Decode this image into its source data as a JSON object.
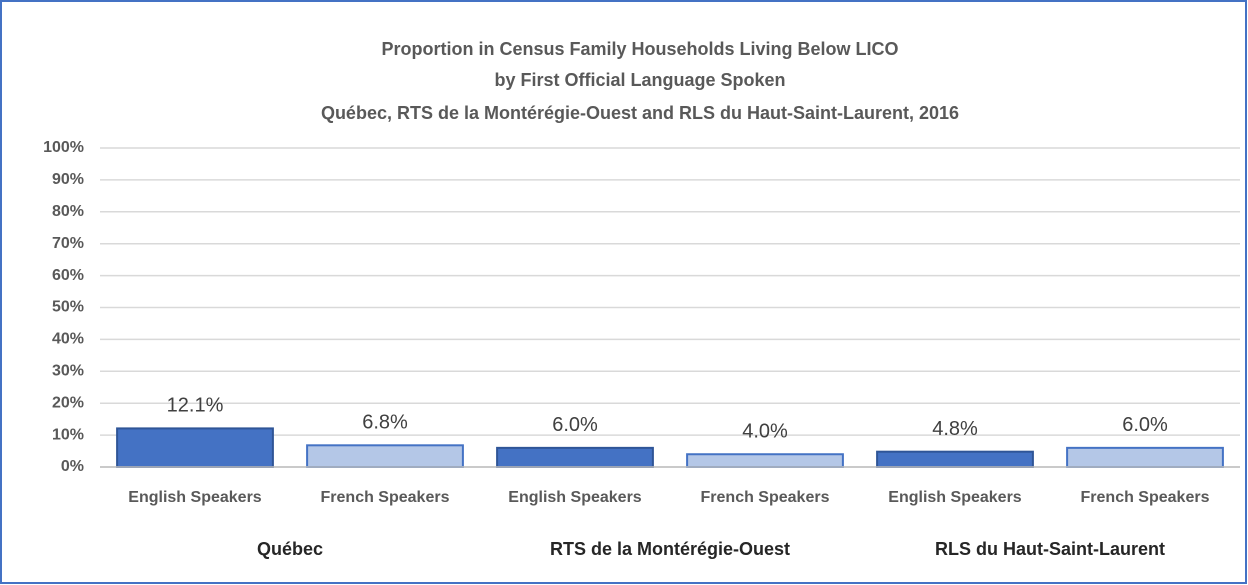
{
  "chart_data": {
    "type": "bar",
    "title": [
      "Proportion in Census Family Households Living Below LICO",
      "by First Official Language Spoken",
      "Québec, RTS de la Montérégie-Ouest and RLS du Haut-Saint-Laurent,  2016"
    ],
    "categories": [
      "Québec",
      "RTS de la Montérégie-Ouest",
      "RLS du Haut-Saint-Laurent"
    ],
    "series": [
      {
        "name": "English Speakers",
        "color": "#4472c4",
        "edgecolor": "#2f5597",
        "values": [
          12.1,
          6.0,
          4.8
        ],
        "value_labels": [
          "12.1%",
          "6.0%",
          "4.8%"
        ]
      },
      {
        "name": "French Speakers",
        "color": "#b4c7e7",
        "edgecolor": "#4472c4",
        "values": [
          6.8,
          4.0,
          6.0
        ],
        "value_labels": [
          "6.8%",
          "4.0%",
          "6.0%"
        ]
      }
    ],
    "ylim": [
      0,
      100
    ],
    "yticks": [
      {
        "value": 0,
        "label": "0%"
      },
      {
        "value": 10,
        "label": "10%"
      },
      {
        "value": 20,
        "label": "20%"
      },
      {
        "value": 30,
        "label": "30%"
      },
      {
        "value": 40,
        "label": "40%"
      },
      {
        "value": 50,
        "label": "50%"
      },
      {
        "value": 60,
        "label": "60%"
      },
      {
        "value": 70,
        "label": "70%"
      },
      {
        "value": 80,
        "label": "80%"
      },
      {
        "value": 90,
        "label": "90%"
      },
      {
        "value": 100,
        "label": "100%"
      }
    ],
    "grid": true
  }
}
